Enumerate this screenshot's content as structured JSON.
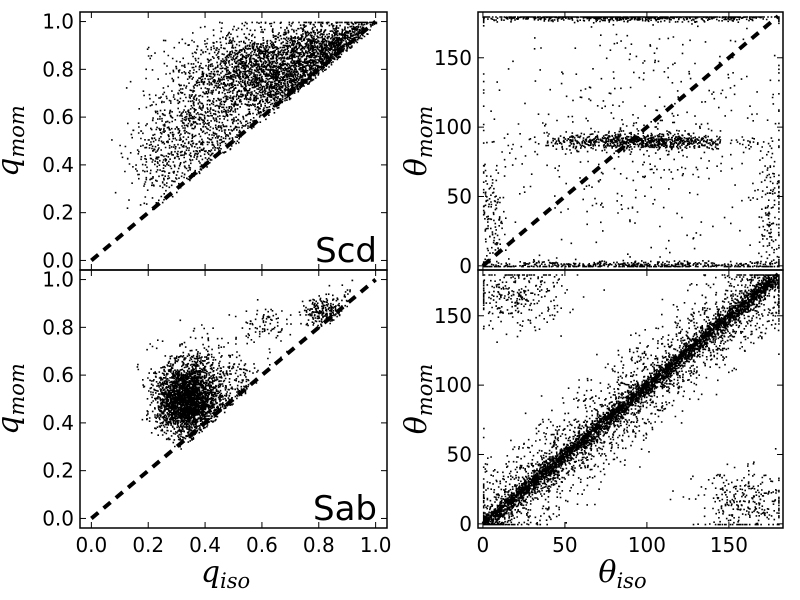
{
  "chart_data": [
    {
      "type": "scatter",
      "panel": "top-left",
      "annotation": "Scd",
      "xlabel": "",
      "ylabel": {
        "base": "q",
        "sub": "mom"
      },
      "xlim": [
        -0.04,
        1.04
      ],
      "ylim": [
        -0.04,
        1.04
      ],
      "xticks": [],
      "yticks": [
        0.0,
        0.2,
        0.4,
        0.6,
        0.8,
        1.0
      ],
      "ytick_labels": [
        "0.0",
        "0.2",
        "0.4",
        "0.6",
        "0.8",
        "1.0"
      ],
      "reference_line": {
        "style": "dashed",
        "from": [
          0,
          0
        ],
        "to": [
          1,
          1
        ]
      },
      "clusters": [
        {
          "center": [
            0.62,
            0.78
          ],
          "spread": [
            0.14,
            0.09
          ],
          "count": 2600
        },
        {
          "center": [
            0.82,
            0.9
          ],
          "spread": [
            0.1,
            0.05
          ],
          "count": 900
        },
        {
          "center": [
            0.38,
            0.55
          ],
          "spread": [
            0.1,
            0.11
          ],
          "count": 700
        },
        {
          "center": [
            0.25,
            0.42
          ],
          "spread": [
            0.06,
            0.1
          ],
          "count": 250
        }
      ]
    },
    {
      "type": "scatter",
      "panel": "top-right",
      "xlabel": "",
      "ylabel": {
        "base": "θ",
        "sub": "mom"
      },
      "xlim": [
        -3,
        183
      ],
      "ylim": [
        -3,
        183
      ],
      "xticks": [],
      "yticks": [
        0,
        50,
        100,
        150
      ],
      "ytick_labels": [
        "0",
        "50",
        "100",
        "150"
      ],
      "reference_line": {
        "style": "dashed",
        "from": [
          0,
          0
        ],
        "to": [
          180,
          180
        ]
      },
      "clusters": [
        {
          "center": [
            95,
            90
          ],
          "spread": [
            28,
            3
          ],
          "count": 800
        },
        {
          "center": [
            90,
            180
          ],
          "spread": [
            55,
            1.5
          ],
          "count": 900
        },
        {
          "center": [
            90,
            1
          ],
          "spread": [
            60,
            1.5
          ],
          "count": 500
        },
        {
          "center": [
            100,
            95
          ],
          "spread": [
            50,
            50
          ],
          "count": 500
        },
        {
          "center": [
            5,
            30
          ],
          "spread": [
            4,
            25
          ],
          "count": 150
        },
        {
          "center": [
            175,
            40
          ],
          "spread": [
            4,
            30
          ],
          "count": 150
        }
      ]
    },
    {
      "type": "scatter",
      "panel": "bottom-left",
      "annotation": "Sab",
      "xlabel": {
        "base": "q",
        "sub": "iso"
      },
      "ylabel": {
        "base": "q",
        "sub": "mom"
      },
      "xlim": [
        -0.04,
        1.04
      ],
      "ylim": [
        -0.04,
        1.04
      ],
      "xticks": [
        0.0,
        0.2,
        0.4,
        0.6,
        0.8,
        1.0
      ],
      "xtick_labels": [
        "0.0",
        "0.2",
        "0.4",
        "0.6",
        "0.8",
        "1.0"
      ],
      "yticks": [
        0.0,
        0.2,
        0.4,
        0.6,
        0.8,
        1.0
      ],
      "ytick_labels": [
        "0.0",
        "0.2",
        "0.4",
        "0.6",
        "0.8",
        "1.0"
      ],
      "reference_line": {
        "style": "dashed",
        "from": [
          0,
          0
        ],
        "to": [
          1,
          1
        ]
      },
      "clusters": [
        {
          "center": [
            0.33,
            0.5
          ],
          "spread": [
            0.05,
            0.07
          ],
          "count": 4200
        },
        {
          "center": [
            0.4,
            0.55
          ],
          "spread": [
            0.08,
            0.1
          ],
          "count": 700
        },
        {
          "center": [
            0.82,
            0.87
          ],
          "spread": [
            0.04,
            0.03
          ],
          "count": 250
        },
        {
          "center": [
            0.6,
            0.82
          ],
          "spread": [
            0.04,
            0.04
          ],
          "count": 80
        }
      ]
    },
    {
      "type": "scatter",
      "panel": "bottom-right",
      "xlabel": {
        "base": "θ",
        "sub": "iso"
      },
      "ylabel": {
        "base": "θ",
        "sub": "mom"
      },
      "xlim": [
        -3,
        183
      ],
      "ylim": [
        -3,
        183
      ],
      "xticks": [
        0,
        50,
        100,
        150
      ],
      "xtick_labels": [
        "0",
        "50",
        "100",
        "150"
      ],
      "yticks": [
        0,
        50,
        100,
        150
      ],
      "ytick_labels": [
        "0",
        "50",
        "100",
        "150"
      ],
      "reference_line": {
        "style": "dashed",
        "from": [
          0,
          0
        ],
        "to": [
          180,
          180
        ]
      },
      "clusters": [
        {
          "type": "diagonal",
          "range": [
            0,
            180
          ],
          "spread": 4,
          "count": 3500
        },
        {
          "type": "diagonal",
          "range": [
            0,
            180
          ],
          "spread": 18,
          "count": 2200
        },
        {
          "center": [
            20,
            165
          ],
          "spread": [
            15,
            12
          ],
          "count": 300
        },
        {
          "center": [
            160,
            15
          ],
          "spread": [
            15,
            12
          ],
          "count": 300
        }
      ]
    }
  ]
}
